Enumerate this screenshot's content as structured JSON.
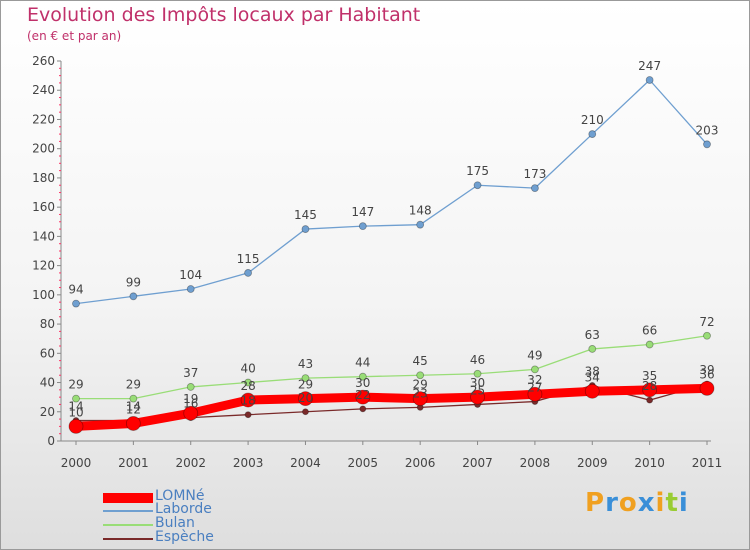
{
  "header": {
    "title": "Evolution des Impôts locaux par Habitant",
    "subtitle": "(en € et par an)"
  },
  "chart_data": {
    "type": "line",
    "title": "Evolution des Impôts locaux par Habitant",
    "subtitle": "(en € et par an)",
    "x": [
      "2000",
      "2001",
      "2002",
      "2003",
      "2004",
      "2005",
      "2006",
      "2007",
      "2008",
      "2009",
      "2010",
      "2011"
    ],
    "ylim": [
      0,
      260
    ],
    "y_ticks": [
      0,
      20,
      40,
      60,
      80,
      100,
      120,
      140,
      160,
      180,
      200,
      220,
      240,
      260
    ],
    "grid": false,
    "legend_position": "bottom-left",
    "series": [
      {
        "name": "LOMNé",
        "color": "#ff0000",
        "values": [
          10,
          12,
          19,
          28,
          29,
          30,
          29,
          30,
          32,
          34,
          35,
          36
        ],
        "labels": [
          "10",
          "12",
          "19",
          "28",
          "29",
          "30",
          "29",
          "30",
          "32",
          "34",
          "35",
          "36"
        ]
      },
      {
        "name": "Laborde",
        "color": "#6f9fd0",
        "values": [
          94,
          99,
          104,
          115,
          145,
          147,
          148,
          175,
          173,
          210,
          247,
          203
        ],
        "labels": [
          "94",
          "99",
          "104",
          "115",
          "145",
          "147",
          "148",
          "175",
          "173",
          "210",
          "247",
          "203"
        ]
      },
      {
        "name": "Bulan",
        "color": "#99dd77",
        "values": [
          29,
          29,
          37,
          40,
          43,
          44,
          45,
          46,
          49,
          63,
          66,
          72
        ],
        "labels": [
          "29",
          "29",
          "37",
          "40",
          "43",
          "44",
          "45",
          "46",
          "49",
          "63",
          "66",
          "72"
        ]
      },
      {
        "name": "Espèche",
        "color": "#7a2a2a",
        "values": [
          14,
          14,
          16,
          18,
          20,
          22,
          23,
          25,
          27,
          38,
          28,
          39
        ],
        "labels": [
          "14",
          "14",
          "16",
          "18",
          "20",
          "22",
          "23",
          "25",
          "27",
          "38",
          "28",
          "39"
        ]
      }
    ]
  },
  "logo": {
    "letters": [
      {
        "ch": "P",
        "color": "#f0a020"
      },
      {
        "ch": "r",
        "color": "#3a8fd8"
      },
      {
        "ch": "o",
        "color": "#f0a020"
      },
      {
        "ch": "x",
        "color": "#3a8fd8"
      },
      {
        "ch": "i",
        "color": "#f0a020"
      },
      {
        "ch": "t",
        "color": "#99cc33"
      },
      {
        "ch": "i",
        "color": "#3a8fd8"
      }
    ]
  }
}
